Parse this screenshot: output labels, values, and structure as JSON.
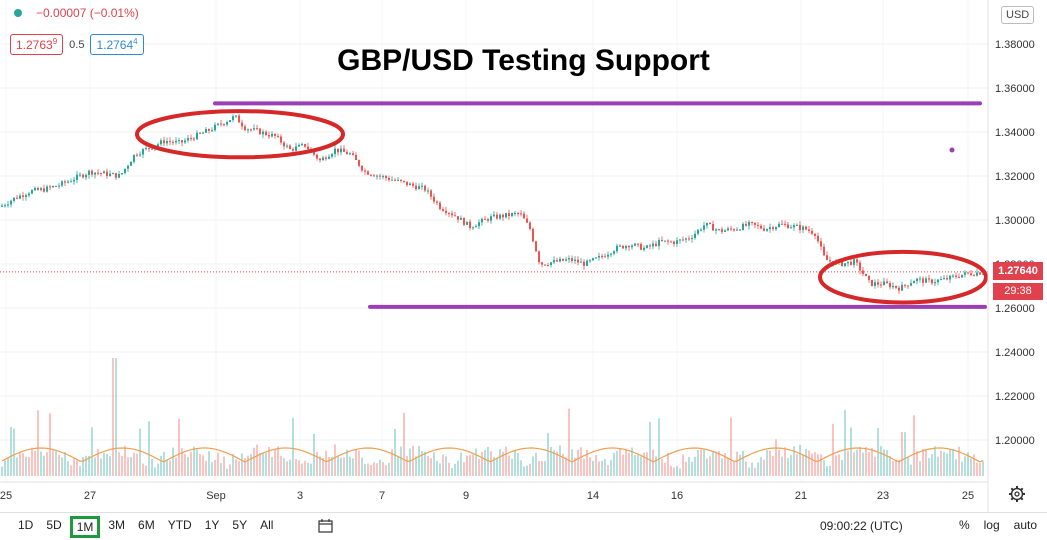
{
  "title": "GBP/USD Testing Support",
  "header": {
    "change": "−0.00007 (−0.01%)",
    "sell_price": "1.2763",
    "sell_price_sup": "9",
    "spread": "0.5",
    "buy_price": "1.2764",
    "buy_price_sup": "4",
    "currency_badge": "USD"
  },
  "price_axis": {
    "labels": [
      "1.38000",
      "1.36000",
      "1.34000",
      "1.32000",
      "1.30000",
      "1.28000",
      "1.26000",
      "1.24000",
      "1.22000",
      "1.20000"
    ],
    "current_price": "1.27640",
    "countdown": "29:38"
  },
  "time_axis": {
    "labels": [
      "25",
      "27",
      "Sep",
      "3",
      "7",
      "9",
      "14",
      "16",
      "21",
      "23",
      "25"
    ]
  },
  "toolbar": {
    "timeframes": [
      "1D",
      "5D",
      "1M",
      "3M",
      "6M",
      "YTD",
      "1Y",
      "5Y",
      "All"
    ],
    "selected": "1M",
    "clock": "09:00:22 (UTC)",
    "percent": "%",
    "log": "log",
    "auto": "auto"
  },
  "colors": {
    "up": "#26a69a",
    "down": "#ef5350",
    "support_line": "#9b3fb5",
    "ellipse": "#d62828",
    "volume_ma": "#f0a050",
    "highlight": "#1e9a3c"
  },
  "chart_data": {
    "type": "candlestick",
    "title": "GBP/USD Testing Support",
    "ylim": [
      1.185,
      1.39
    ],
    "y_ticks": [
      1.38,
      1.36,
      1.34,
      1.32,
      1.3,
      1.28,
      1.26,
      1.24,
      1.22,
      1.2
    ],
    "x_ticks": [
      "25",
      "27",
      "Sep",
      "3",
      "7",
      "9",
      "14",
      "16",
      "21",
      "23",
      "25"
    ],
    "close_path": [
      [
        0,
        1.306
      ],
      [
        15,
        1.31
      ],
      [
        30,
        1.313
      ],
      [
        45,
        1.314
      ],
      [
        60,
        1.316
      ],
      [
        75,
        1.319
      ],
      [
        90,
        1.322
      ],
      [
        105,
        1.321
      ],
      [
        120,
        1.32
      ],
      [
        135,
        1.33
      ],
      [
        150,
        1.333
      ],
      [
        165,
        1.336
      ],
      [
        180,
        1.335
      ],
      [
        195,
        1.338
      ],
      [
        210,
        1.341
      ],
      [
        222,
        1.344
      ],
      [
        235,
        1.347
      ],
      [
        245,
        1.342
      ],
      [
        260,
        1.34
      ],
      [
        275,
        1.338
      ],
      [
        290,
        1.332
      ],
      [
        305,
        1.334
      ],
      [
        320,
        1.327
      ],
      [
        335,
        1.332
      ],
      [
        350,
        1.33
      ],
      [
        365,
        1.322
      ],
      [
        380,
        1.32
      ],
      [
        395,
        1.318
      ],
      [
        410,
        1.316
      ],
      [
        425,
        1.314
      ],
      [
        440,
        1.306
      ],
      [
        455,
        1.302
      ],
      [
        470,
        1.297
      ],
      [
        490,
        1.301
      ],
      [
        505,
        1.302
      ],
      [
        520,
        1.303
      ],
      [
        530,
        1.296
      ],
      [
        540,
        1.28
      ],
      [
        555,
        1.281
      ],
      [
        570,
        1.282
      ],
      [
        585,
        1.28
      ],
      [
        600,
        1.283
      ],
      [
        615,
        1.287
      ],
      [
        630,
        1.289
      ],
      [
        645,
        1.287
      ],
      [
        660,
        1.29
      ],
      [
        675,
        1.29
      ],
      [
        690,
        1.292
      ],
      [
        705,
        1.298
      ],
      [
        720,
        1.295
      ],
      [
        735,
        1.296
      ],
      [
        750,
        1.298
      ],
      [
        765,
        1.296
      ],
      [
        780,
        1.298
      ],
      [
        795,
        1.297
      ],
      [
        805,
        1.296
      ],
      [
        815,
        1.294
      ],
      [
        825,
        1.282
      ],
      [
        840,
        1.28
      ],
      [
        855,
        1.281
      ],
      [
        870,
        1.271
      ],
      [
        885,
        1.271
      ],
      [
        900,
        1.269
      ],
      [
        915,
        1.273
      ],
      [
        930,
        1.272
      ],
      [
        945,
        1.273
      ],
      [
        960,
        1.275
      ],
      [
        975,
        1.276
      ],
      [
        985,
        1.2764
      ]
    ],
    "current_price": 1.2764,
    "lines": [
      {
        "level": 1.353,
        "from_index": 215,
        "to_index": 980
      },
      {
        "level": 1.2605,
        "from_index": 370,
        "to_index": 985
      }
    ],
    "annotations": [
      {
        "type": "ellipse",
        "center_index": 240,
        "center_price": 1.339,
        "rx_index": 103,
        "ry_price": 0.0105
      },
      {
        "type": "ellipse",
        "center_index": 903,
        "center_price": 1.274,
        "rx_index": 83,
        "ry_price": 0.0115
      }
    ]
  }
}
